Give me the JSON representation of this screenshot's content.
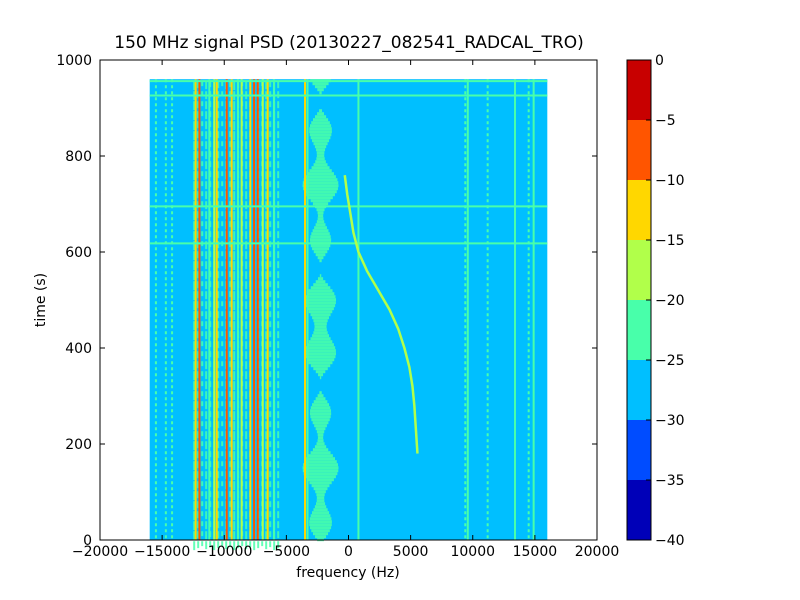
{
  "chart_data": {
    "type": "heatmap",
    "title": "150 MHz signal PSD (20130227_082541_RADCAL_TRO)",
    "xlabel": "frequency (Hz)",
    "ylabel": "time (s)",
    "xlim": [
      -20000,
      20000
    ],
    "ylim": [
      0,
      1000
    ],
    "x_ticks": [
      -20000,
      -15000,
      -10000,
      -5000,
      0,
      5000,
      10000,
      15000,
      20000
    ],
    "x_tick_labels": [
      "−20000",
      "−15000",
      "−10000",
      "−5000",
      "0",
      "5000",
      "10000",
      "15000",
      "20000"
    ],
    "y_ticks": [
      0,
      200,
      400,
      600,
      800,
      1000
    ],
    "y_tick_labels": [
      "0",
      "200",
      "400",
      "600",
      "800",
      "1000"
    ],
    "data_extent": {
      "freq_min": -16000,
      "freq_max": 16000,
      "time_min": 0,
      "time_max": 960
    },
    "colorbar": {
      "levels": [
        -40,
        -35,
        -30,
        -25,
        -20,
        -15,
        -10,
        -5,
        0
      ],
      "tick_labels": [
        "−40",
        "−35",
        "−30",
        "−25",
        "−20",
        "−15",
        "−10",
        "−5",
        "0"
      ],
      "colors": [
        "#0000b8",
        "#004cff",
        "#00bfff",
        "#48ffaa",
        "#b1ff4a",
        "#ffd700",
        "#ff5500",
        "#c80000"
      ]
    },
    "background_level_db": -27.5,
    "vertical_lines": [
      {
        "freq": -15500,
        "level_db": -22,
        "style": "dotted"
      },
      {
        "freq": -14700,
        "level_db": -22,
        "style": "dotted"
      },
      {
        "freq": -14200,
        "level_db": -22,
        "style": "dotted"
      },
      {
        "freq": -12300,
        "level_db": -12,
        "style": "solid"
      },
      {
        "freq": -12000,
        "level_db": -7,
        "style": "solid"
      },
      {
        "freq": -11200,
        "level_db": -22,
        "style": "solid"
      },
      {
        "freq": -10800,
        "level_db": -17,
        "style": "solid"
      },
      {
        "freq": -10600,
        "level_db": -12,
        "style": "solid"
      },
      {
        "freq": -9800,
        "level_db": -7,
        "style": "solid"
      },
      {
        "freq": -9400,
        "level_db": -12,
        "style": "solid"
      },
      {
        "freq": -8900,
        "level_db": -22,
        "style": "solid"
      },
      {
        "freq": -8600,
        "level_db": -17,
        "style": "solid"
      },
      {
        "freq": -7900,
        "level_db": -12,
        "style": "solid"
      },
      {
        "freq": -7600,
        "level_db": -7,
        "style": "solid"
      },
      {
        "freq": -7300,
        "level_db": -7,
        "style": "solid"
      },
      {
        "freq": -6900,
        "level_db": -17,
        "style": "solid"
      },
      {
        "freq": -6500,
        "level_db": -12,
        "style": "solid"
      },
      {
        "freq": -6000,
        "level_db": -22,
        "style": "solid"
      },
      {
        "freq": -3500,
        "level_db": -12,
        "style": "solid"
      },
      {
        "freq": -3300,
        "level_db": -22,
        "style": "solid"
      },
      {
        "freq": 800,
        "level_db": -22,
        "style": "solid"
      },
      {
        "freq": 9400,
        "level_db": -22,
        "style": "dotted"
      },
      {
        "freq": 9600,
        "level_db": -22,
        "style": "solid"
      },
      {
        "freq": 11200,
        "level_db": -22,
        "style": "dotted"
      },
      {
        "freq": 13400,
        "level_db": -22,
        "style": "solid"
      },
      {
        "freq": 14500,
        "level_db": -22,
        "style": "dotted"
      },
      {
        "freq": 14900,
        "level_db": -22,
        "style": "solid"
      }
    ],
    "broadband_regions": [
      {
        "freq_min": -12500,
        "freq_max": -5500,
        "level_db": -22,
        "pattern": "cellular"
      },
      {
        "freq_min": -3800,
        "freq_max": -700,
        "level_db": -22,
        "pattern": "wavy"
      }
    ],
    "horizontal_lines": [
      {
        "time": 956,
        "level_db": -22
      },
      {
        "time": 926,
        "level_db": -22
      },
      {
        "time": 695,
        "level_db": -22
      },
      {
        "time": 618,
        "level_db": -22
      }
    ],
    "sweep_trace": {
      "level_db": -17,
      "points": [
        {
          "t": 760,
          "f": -300
        },
        {
          "t": 720,
          "f": -100
        },
        {
          "t": 680,
          "f": 150
        },
        {
          "t": 640,
          "f": 400
        },
        {
          "t": 600,
          "f": 800
        },
        {
          "t": 560,
          "f": 1500
        },
        {
          "t": 520,
          "f": 2400
        },
        {
          "t": 480,
          "f": 3300
        },
        {
          "t": 440,
          "f": 4000
        },
        {
          "t": 400,
          "f": 4500
        },
        {
          "t": 360,
          "f": 4900
        },
        {
          "t": 320,
          "f": 5150
        },
        {
          "t": 280,
          "f": 5300
        },
        {
          "t": 240,
          "f": 5400
        },
        {
          "t": 200,
          "f": 5500
        },
        {
          "t": 180,
          "f": 5550
        }
      ]
    }
  }
}
